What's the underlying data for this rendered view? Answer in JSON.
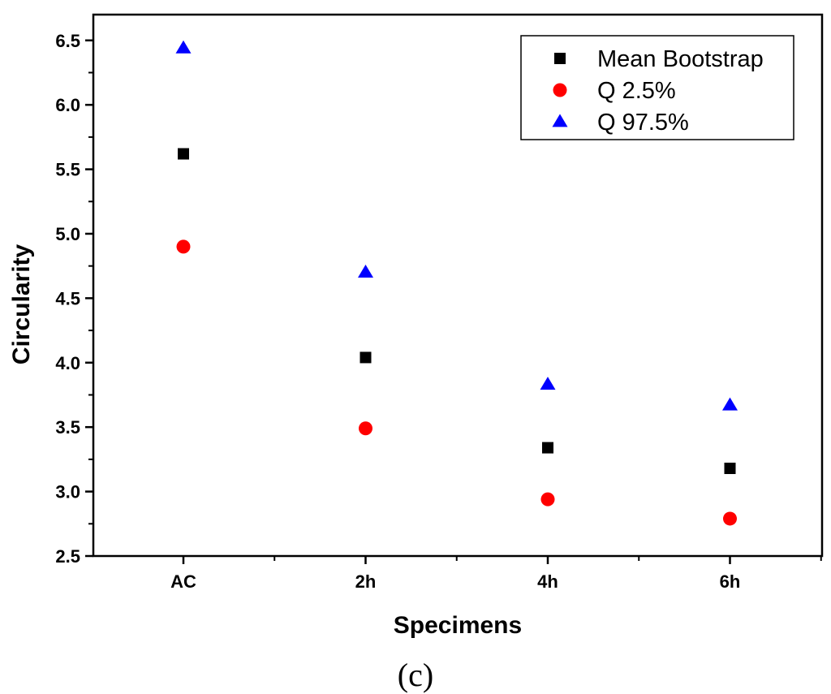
{
  "chart_data": {
    "type": "scatter",
    "title": "",
    "xlabel": "Specimens",
    "ylabel": "Circularity",
    "caption": "(c)",
    "categories": [
      "AC",
      "2h",
      "4h",
      "6h"
    ],
    "ylim": [
      2.5,
      6.7
    ],
    "yticks": [
      "2.5",
      "3.0",
      "3.5",
      "4.0",
      "4.5",
      "5.0",
      "5.5",
      "6.0",
      "6.5"
    ],
    "legend_position": "top-right",
    "grid": false,
    "series": [
      {
        "name": "Mean Bootstrap",
        "marker": "square",
        "color": "#000000",
        "values": [
          5.62,
          4.04,
          3.34,
          3.18
        ]
      },
      {
        "name": "Q 2.5%",
        "marker": "circle",
        "color": "#ff0000",
        "values": [
          4.9,
          3.49,
          2.94,
          2.79
        ]
      },
      {
        "name": "Q 97.5%",
        "marker": "triangle",
        "color": "#0000ff",
        "values": [
          6.44,
          4.7,
          3.83,
          3.67
        ]
      }
    ]
  }
}
